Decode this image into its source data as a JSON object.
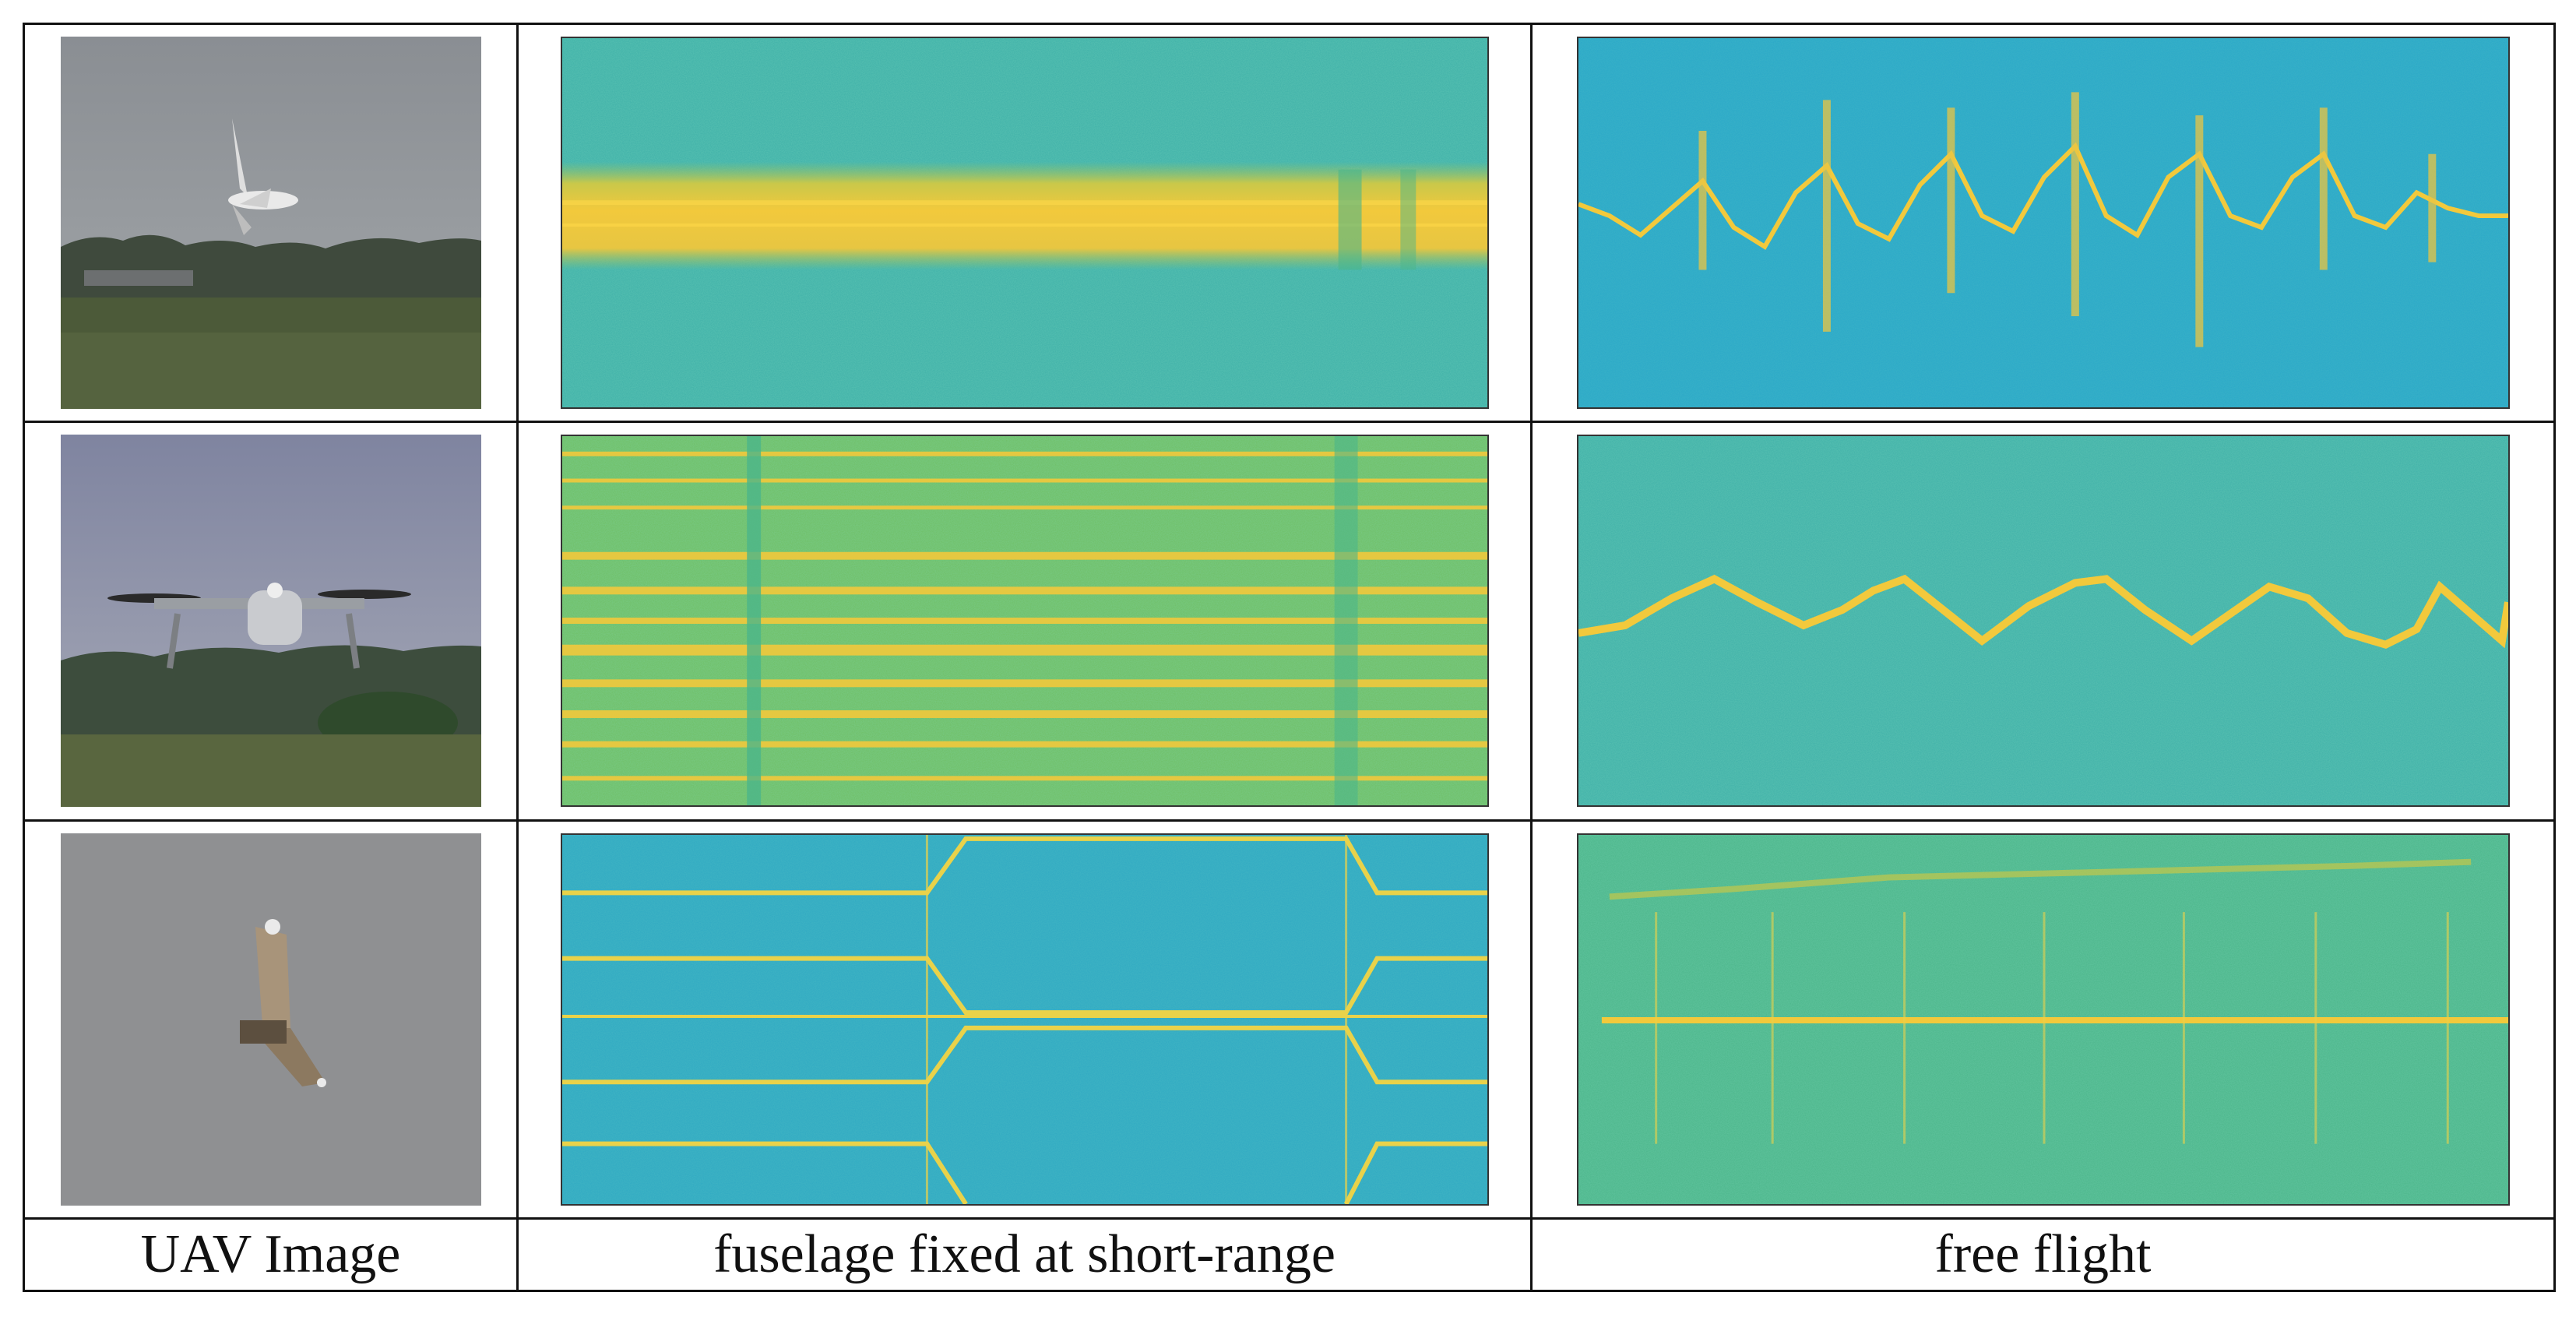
{
  "columns": {
    "image_label": "UAV Image",
    "fixed_label": "fuselage fixed at short-range",
    "free_label": "free flight"
  },
  "rows": [
    {
      "uav": "fixed-wing-drone-photo",
      "fixed_pattern": "wide-band",
      "free_pattern": "flashes"
    },
    {
      "uav": "quadcopter-photo",
      "fixed_pattern": "horizontal-lines",
      "free_pattern": "sinusoid"
    },
    {
      "uav": "flying-wing-photo",
      "fixed_pattern": "lines-with-jumps",
      "free_pattern": "centre-line"
    }
  ],
  "colors": {
    "spectrogram_background": "#2fa9c3",
    "spectrogram_mid": "#4bb58a",
    "spectrogram_energy": "#f2c93c",
    "grid_border": "#111111"
  }
}
